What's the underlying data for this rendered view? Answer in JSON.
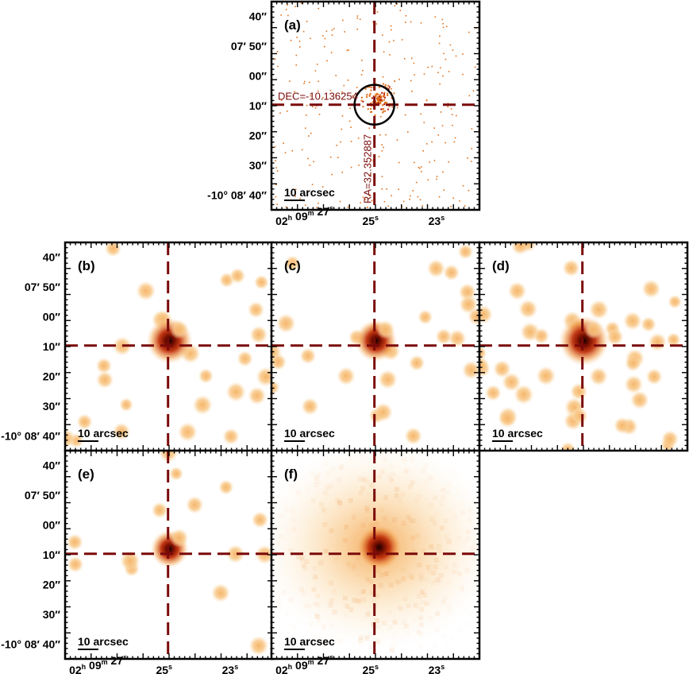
{
  "figure": {
    "panels": [
      {
        "id": "a",
        "label": "(a)",
        "kind": "events",
        "show_yaxis": true,
        "show_xaxis": true,
        "circle": true,
        "annotations": true,
        "blob_strength": 0.9
      },
      {
        "id": "b",
        "label": "(b)",
        "kind": "smooth",
        "show_yaxis": true,
        "show_xaxis": false,
        "blob_strength": 0.9
      },
      {
        "id": "c",
        "label": "(c)",
        "kind": "smooth",
        "show_yaxis": false,
        "show_xaxis": false,
        "blob_strength": 0.8
      },
      {
        "id": "d",
        "label": "(d)",
        "kind": "smooth",
        "show_yaxis": false,
        "show_xaxis": false,
        "blob_strength": 1.0
      },
      {
        "id": "e",
        "label": "(e)",
        "kind": "smooth",
        "show_yaxis": true,
        "show_xaxis": true,
        "blob_strength": 0.7
      },
      {
        "id": "f",
        "label": "(f)",
        "kind": "diffuse",
        "show_yaxis": false,
        "show_xaxis": true,
        "blob_strength": 1.0
      }
    ],
    "scale_bar_label": "10 arcsec",
    "dec_ticks": [
      {
        "label": "40″",
        "value": 40
      },
      {
        "label": "07′ 50″",
        "value": 50
      },
      {
        "label": "00″",
        "value": 60
      },
      {
        "label": "10″",
        "value": 70
      },
      {
        "label": "20″",
        "value": 80
      },
      {
        "label": "30″",
        "value": 90
      },
      {
        "label": "-10° 08′ 40″",
        "value": 100
      }
    ],
    "ra_ticks": [
      {
        "h": "02",
        "m": "09",
        "s": "27",
        "value": 27,
        "full": true
      },
      {
        "s": "25",
        "value": 25
      },
      {
        "s": "23",
        "value": 23
      }
    ],
    "annotation_dec": "DEC=-10.136254",
    "annotation_ra": "RA=32.352887",
    "colors": {
      "crosshair": "#7a0a0a",
      "heat_light": "#fbe3c0",
      "heat_mid": "#f0a050",
      "heat_hot": "#c0300a",
      "heat_core": "#1a0000",
      "event": "#e0701a"
    }
  }
}
